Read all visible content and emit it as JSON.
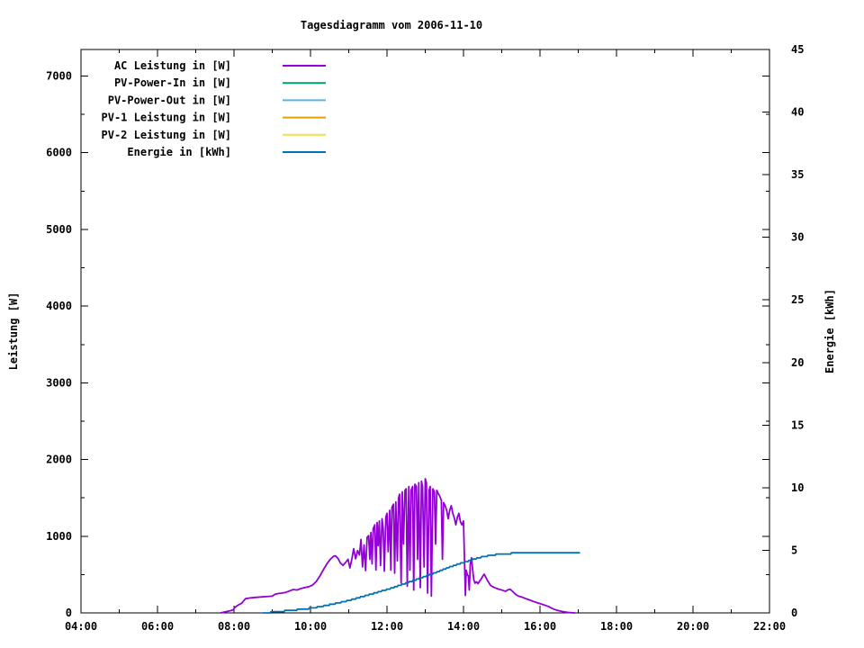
{
  "title": "Tagesdiagramm vom 2006-11-10",
  "axes": {
    "x": {
      "major_ticks": [
        {
          "hour": 4,
          "label": "04:00"
        },
        {
          "hour": 6,
          "label": "06:00"
        },
        {
          "hour": 8,
          "label": "08:00"
        },
        {
          "hour": 10,
          "label": "10:00"
        },
        {
          "hour": 12,
          "label": "12:00"
        },
        {
          "hour": 14,
          "label": "14:00"
        },
        {
          "hour": 16,
          "label": "16:00"
        },
        {
          "hour": 18,
          "label": "18:00"
        },
        {
          "hour": 20,
          "label": "20:00"
        },
        {
          "hour": 22,
          "label": "22:00"
        }
      ],
      "minor_tick_hours": [
        5,
        7,
        9,
        11,
        13,
        15,
        17,
        19,
        21
      ]
    },
    "y_left": {
      "label": "Leistung [W]",
      "major_ticks": [
        {
          "value": 0,
          "label": "0"
        },
        {
          "value": 1000,
          "label": "1000"
        },
        {
          "value": 2000,
          "label": "2000"
        },
        {
          "value": 3000,
          "label": "3000"
        },
        {
          "value": 4000,
          "label": "4000"
        },
        {
          "value": 5000,
          "label": "5000"
        },
        {
          "value": 6000,
          "label": "6000"
        },
        {
          "value": 7000,
          "label": "7000"
        }
      ],
      "minor_tick_values": [
        500,
        1500,
        2500,
        3500,
        4500,
        5500,
        6500
      ]
    },
    "y_right": {
      "label": "Energie [kWh]",
      "major_ticks": [
        {
          "value": 0,
          "label": "0"
        },
        {
          "value": 5,
          "label": "5"
        },
        {
          "value": 10,
          "label": "10"
        },
        {
          "value": 15,
          "label": "15"
        },
        {
          "value": 20,
          "label": "20"
        },
        {
          "value": 25,
          "label": "25"
        },
        {
          "value": 30,
          "label": "30"
        },
        {
          "value": 35,
          "label": "35"
        },
        {
          "value": 40,
          "label": "40"
        },
        {
          "value": 45,
          "label": "45"
        }
      ]
    }
  },
  "colors": {
    "text": "#000000",
    "border": "#000000",
    "background": "#ffffff"
  },
  "chart_data": {
    "type": "line",
    "title": "Tagesdiagramm vom 2006-11-10",
    "xlabel": "",
    "x_unit": "time of day (hours)",
    "x_range_hours": [
      4,
      22
    ],
    "y_left_label": "Leistung [W]",
    "y_left_tick_range": [
      0,
      7000
    ],
    "y_right_label": "Energie [kWh]",
    "y_right_range": [
      0,
      45
    ],
    "grid": false,
    "legend_position": "top-left-inside",
    "series": [
      {
        "name": "AC Leistung in [W]",
        "color": "#9400d3",
        "axis": "left",
        "unit": "W",
        "render": "line",
        "visible_curve": true,
        "points": [
          [
            7.65,
            0
          ],
          [
            7.78,
            15
          ],
          [
            7.9,
            28
          ],
          [
            7.98,
            40
          ],
          [
            8.03,
            75
          ],
          [
            8.1,
            100
          ],
          [
            8.2,
            125
          ],
          [
            8.3,
            185
          ],
          [
            8.42,
            195
          ],
          [
            8.55,
            202
          ],
          [
            8.7,
            208
          ],
          [
            8.85,
            212
          ],
          [
            9.0,
            218
          ],
          [
            9.07,
            242
          ],
          [
            9.15,
            252
          ],
          [
            9.25,
            258
          ],
          [
            9.35,
            268
          ],
          [
            9.45,
            285
          ],
          [
            9.55,
            305
          ],
          [
            9.65,
            298
          ],
          [
            9.75,
            318
          ],
          [
            9.85,
            330
          ],
          [
            9.95,
            342
          ],
          [
            10.05,
            362
          ],
          [
            10.15,
            410
          ],
          [
            10.25,
            485
          ],
          [
            10.35,
            575
          ],
          [
            10.45,
            655
          ],
          [
            10.52,
            700
          ],
          [
            10.6,
            738
          ],
          [
            10.65,
            745
          ],
          [
            10.72,
            710
          ],
          [
            10.78,
            652
          ],
          [
            10.85,
            620
          ],
          [
            10.92,
            658
          ],
          [
            10.98,
            700
          ],
          [
            11.03,
            585
          ],
          [
            11.08,
            700
          ],
          [
            11.13,
            838
          ],
          [
            11.18,
            705
          ],
          [
            11.23,
            812
          ],
          [
            11.28,
            755
          ],
          [
            11.32,
            958
          ],
          [
            11.36,
            600
          ],
          [
            11.4,
            885
          ],
          [
            11.44,
            552
          ],
          [
            11.48,
            985
          ],
          [
            11.52,
            1008
          ],
          [
            11.55,
            698
          ],
          [
            11.58,
            1048
          ],
          [
            11.61,
            640
          ],
          [
            11.64,
            1098
          ],
          [
            11.68,
            1148
          ],
          [
            11.71,
            560
          ],
          [
            11.74,
            1178
          ],
          [
            11.77,
            878
          ],
          [
            11.8,
            1198
          ],
          [
            11.83,
            618
          ],
          [
            11.87,
            1228
          ],
          [
            11.9,
            1098
          ],
          [
            11.93,
            545
          ],
          [
            11.97,
            1248
          ],
          [
            12.0,
            1298
          ],
          [
            12.03,
            798
          ],
          [
            12.07,
            1338
          ],
          [
            12.1,
            558
          ],
          [
            12.13,
            1378
          ],
          [
            12.17,
            1418
          ],
          [
            12.2,
            518
          ],
          [
            12.23,
            1448
          ],
          [
            12.27,
            678
          ],
          [
            12.3,
            1498
          ],
          [
            12.33,
            1548
          ],
          [
            12.37,
            388
          ],
          [
            12.4,
            1578
          ],
          [
            12.43,
            898
          ],
          [
            12.47,
            1598
          ],
          [
            12.5,
            1618
          ],
          [
            12.53,
            348
          ],
          [
            12.57,
            1648
          ],
          [
            12.6,
            558
          ],
          [
            12.63,
            1598
          ],
          [
            12.67,
            1648
          ],
          [
            12.7,
            298
          ],
          [
            12.73,
            1678
          ],
          [
            12.77,
            1648
          ],
          [
            12.8,
            698
          ],
          [
            12.83,
            1698
          ],
          [
            12.87,
            328
          ],
          [
            12.9,
            1718
          ],
          [
            12.93,
            1648
          ],
          [
            12.97,
            598
          ],
          [
            13.0,
            1748
          ],
          [
            13.03,
            1698
          ],
          [
            13.06,
            258
          ],
          [
            13.1,
            1598
          ],
          [
            13.13,
            1648
          ],
          [
            13.16,
            218
          ],
          [
            13.2,
            1618
          ],
          [
            13.24,
            1578
          ],
          [
            13.27,
            898
          ],
          [
            13.3,
            1598
          ],
          [
            13.34,
            1558
          ],
          [
            13.38,
            1518
          ],
          [
            13.42,
            1468
          ],
          [
            13.45,
            698
          ],
          [
            13.48,
            1438
          ],
          [
            13.52,
            1398
          ],
          [
            13.56,
            1338
          ],
          [
            13.6,
            1228
          ],
          [
            13.64,
            1338
          ],
          [
            13.68,
            1398
          ],
          [
            13.72,
            1298
          ],
          [
            13.76,
            1238
          ],
          [
            13.8,
            1148
          ],
          [
            13.84,
            1248
          ],
          [
            13.88,
            1298
          ],
          [
            13.92,
            1188
          ],
          [
            13.96,
            1148
          ],
          [
            14.0,
            1198
          ],
          [
            14.03,
            598
          ],
          [
            14.05,
            228
          ],
          [
            14.07,
            558
          ],
          [
            14.1,
            498
          ],
          [
            14.13,
            478
          ],
          [
            14.15,
            298
          ],
          [
            14.18,
            648
          ],
          [
            14.21,
            718
          ],
          [
            14.24,
            558
          ],
          [
            14.27,
            428
          ],
          [
            14.3,
            388
          ],
          [
            14.34,
            405
          ],
          [
            14.38,
            382
          ],
          [
            14.42,
            415
          ],
          [
            14.46,
            438
          ],
          [
            14.5,
            478
          ],
          [
            14.54,
            505
          ],
          [
            14.58,
            468
          ],
          [
            14.62,
            428
          ],
          [
            14.66,
            398
          ],
          [
            14.7,
            362
          ],
          [
            14.75,
            345
          ],
          [
            14.8,
            332
          ],
          [
            14.86,
            320
          ],
          [
            14.92,
            310
          ],
          [
            14.98,
            302
          ],
          [
            15.05,
            290
          ],
          [
            15.1,
            282
          ],
          [
            15.16,
            300
          ],
          [
            15.22,
            308
          ],
          [
            15.28,
            282
          ],
          [
            15.34,
            252
          ],
          [
            15.4,
            228
          ],
          [
            15.46,
            215
          ],
          [
            15.52,
            208
          ],
          [
            15.62,
            188
          ],
          [
            15.72,
            170
          ],
          [
            15.82,
            150
          ],
          [
            15.92,
            134
          ],
          [
            16.02,
            118
          ],
          [
            16.12,
            102
          ],
          [
            16.22,
            84
          ],
          [
            16.32,
            58
          ],
          [
            16.42,
            38
          ],
          [
            16.52,
            25
          ],
          [
            16.62,
            14
          ],
          [
            16.72,
            7
          ],
          [
            16.82,
            2
          ],
          [
            16.92,
            0
          ]
        ]
      },
      {
        "name": "PV-Power-In in [W]",
        "color": "#009e73",
        "axis": "left",
        "unit": "W",
        "render": "line",
        "visible_curve": false,
        "points": []
      },
      {
        "name": "PV-Power-Out in [W]",
        "color": "#56b4e9",
        "axis": "left",
        "unit": "W",
        "render": "line",
        "visible_curve": false,
        "points": []
      },
      {
        "name": "PV-1 Leistung in [W]",
        "color": "#e69f00",
        "axis": "left",
        "unit": "W",
        "render": "line",
        "visible_curve": false,
        "points": []
      },
      {
        "name": "PV-2 Leistung in [W]",
        "color": "#f0e442",
        "axis": "left",
        "unit": "W",
        "render": "line",
        "visible_curve": false,
        "points": []
      },
      {
        "name": "Energie in [kWh]",
        "color": "#0072b2",
        "axis": "right",
        "unit": "kWh",
        "render": "steps",
        "visible_curve": true,
        "points": [
          [
            8.75,
            0
          ],
          [
            9.0,
            0.06
          ],
          [
            9.25,
            0.13
          ],
          [
            9.5,
            0.2
          ],
          [
            9.75,
            0.28
          ],
          [
            10.0,
            0.36
          ],
          [
            10.25,
            0.5
          ],
          [
            10.5,
            0.65
          ],
          [
            10.75,
            0.82
          ],
          [
            11.0,
            1.0
          ],
          [
            11.25,
            1.2
          ],
          [
            11.5,
            1.42
          ],
          [
            11.75,
            1.64
          ],
          [
            12.0,
            1.87
          ],
          [
            12.25,
            2.12
          ],
          [
            12.5,
            2.38
          ],
          [
            12.75,
            2.64
          ],
          [
            13.0,
            2.92
          ],
          [
            13.25,
            3.2
          ],
          [
            13.5,
            3.5
          ],
          [
            13.75,
            3.78
          ],
          [
            14.0,
            4.02
          ],
          [
            14.25,
            4.28
          ],
          [
            14.5,
            4.48
          ],
          [
            14.75,
            4.62
          ],
          [
            15.0,
            4.7
          ],
          [
            15.25,
            4.75
          ],
          [
            15.5,
            4.78
          ],
          [
            15.75,
            4.8
          ],
          [
            16.0,
            4.81
          ],
          [
            16.3,
            4.82
          ],
          [
            16.55,
            4.84
          ],
          [
            16.8,
            4.85
          ],
          [
            17.03,
            4.85
          ]
        ]
      }
    ]
  }
}
